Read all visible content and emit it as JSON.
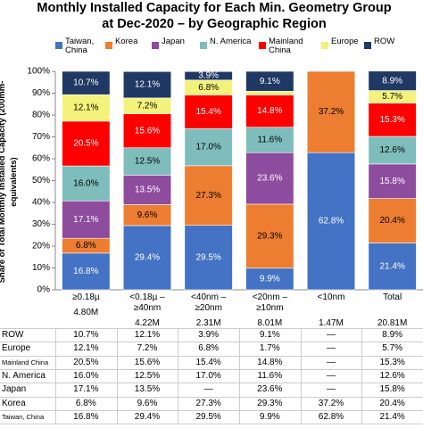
{
  "chart_data": {
    "type": "stacked_bar",
    "title": "Monthly Installed Capacity for Each Min. Geometry Group at Dec-2020 – by Geographic Region",
    "y_label": "Share of Total Monthly Installed Capacity (200mm-equivalents)",
    "categories": [
      "≥0.18µ",
      "<0.18µ – ≥40nm",
      "<40nm – ≥20nm",
      "<20nm – ≥10nm",
      "<10nm",
      "Total"
    ],
    "capacity_labels": [
      "4.80M",
      "4.22M",
      "2.31M",
      "8.01M",
      "1.47M",
      "20.81M"
    ],
    "ylim": [
      0,
      100
    ],
    "yticks": [
      {
        "value": 0,
        "label": "0%"
      },
      {
        "value": 10,
        "label": "10%"
      },
      {
        "value": 20,
        "label": "20%"
      },
      {
        "value": 30,
        "label": "30%"
      },
      {
        "value": 40,
        "label": "40%"
      },
      {
        "value": 50,
        "label": "50%"
      },
      {
        "value": 60,
        "label": "60%"
      },
      {
        "value": 70,
        "label": "70%"
      },
      {
        "value": 80,
        "label": "80%"
      },
      {
        "value": 90,
        "label": "90%"
      },
      {
        "value": 100,
        "label": "100%"
      }
    ],
    "grid": false,
    "series": [
      {
        "name": "Taiwan, China",
        "color": "#4472c4",
        "values": [
          16.8,
          29.4,
          29.5,
          9.9,
          62.8,
          21.4
        ],
        "value_labels": [
          "16.8%",
          "29.4%",
          "29.5%",
          "9.9%",
          "62.8%",
          "21.4%"
        ]
      },
      {
        "name": "Korea",
        "color": "#ed7d31",
        "values": [
          6.8,
          9.6,
          27.3,
          29.3,
          37.2,
          20.4
        ],
        "value_labels": [
          "6.8%",
          "9.6%",
          "27.3%",
          "29.3%",
          "37.2%",
          "20.4%"
        ]
      },
      {
        "name": "Japan",
        "color": "#8e4c9e",
        "values": [
          17.1,
          13.5,
          null,
          23.6,
          null,
          15.8
        ],
        "value_labels": [
          "17.1%",
          "13.5%",
          "—",
          "23.6%",
          "—",
          "15.8%"
        ]
      },
      {
        "name": "N. America",
        "color": "#7fbcbc",
        "values": [
          16.0,
          12.5,
          17.0,
          11.6,
          null,
          12.6
        ],
        "value_labels": [
          "16.0%",
          "12.5%",
          "17.0%",
          "11.6%",
          "—",
          "12.6%"
        ]
      },
      {
        "name": "Mainland China",
        "color": "#ff0000",
        "values": [
          20.5,
          15.6,
          15.4,
          14.8,
          null,
          15.3
        ],
        "value_labels": [
          "20.5%",
          "15.6%",
          "15.4%",
          "14.8%",
          "—",
          "15.3%"
        ]
      },
      {
        "name": "Europe",
        "color": "#f3f27a",
        "values": [
          12.1,
          7.2,
          6.8,
          1.7,
          null,
          5.7
        ],
        "value_labels": [
          "12.1%",
          "7.2%",
          "6.8%",
          "1.7%",
          "—",
          "5.7%"
        ]
      },
      {
        "name": "ROW",
        "color": "#203864",
        "values": [
          10.7,
          12.1,
          3.9,
          9.1,
          null,
          8.9
        ],
        "value_labels": [
          "10.7%",
          "12.1%",
          "3.9%",
          "9.1%",
          "—",
          "8.9%"
        ]
      }
    ]
  }
}
